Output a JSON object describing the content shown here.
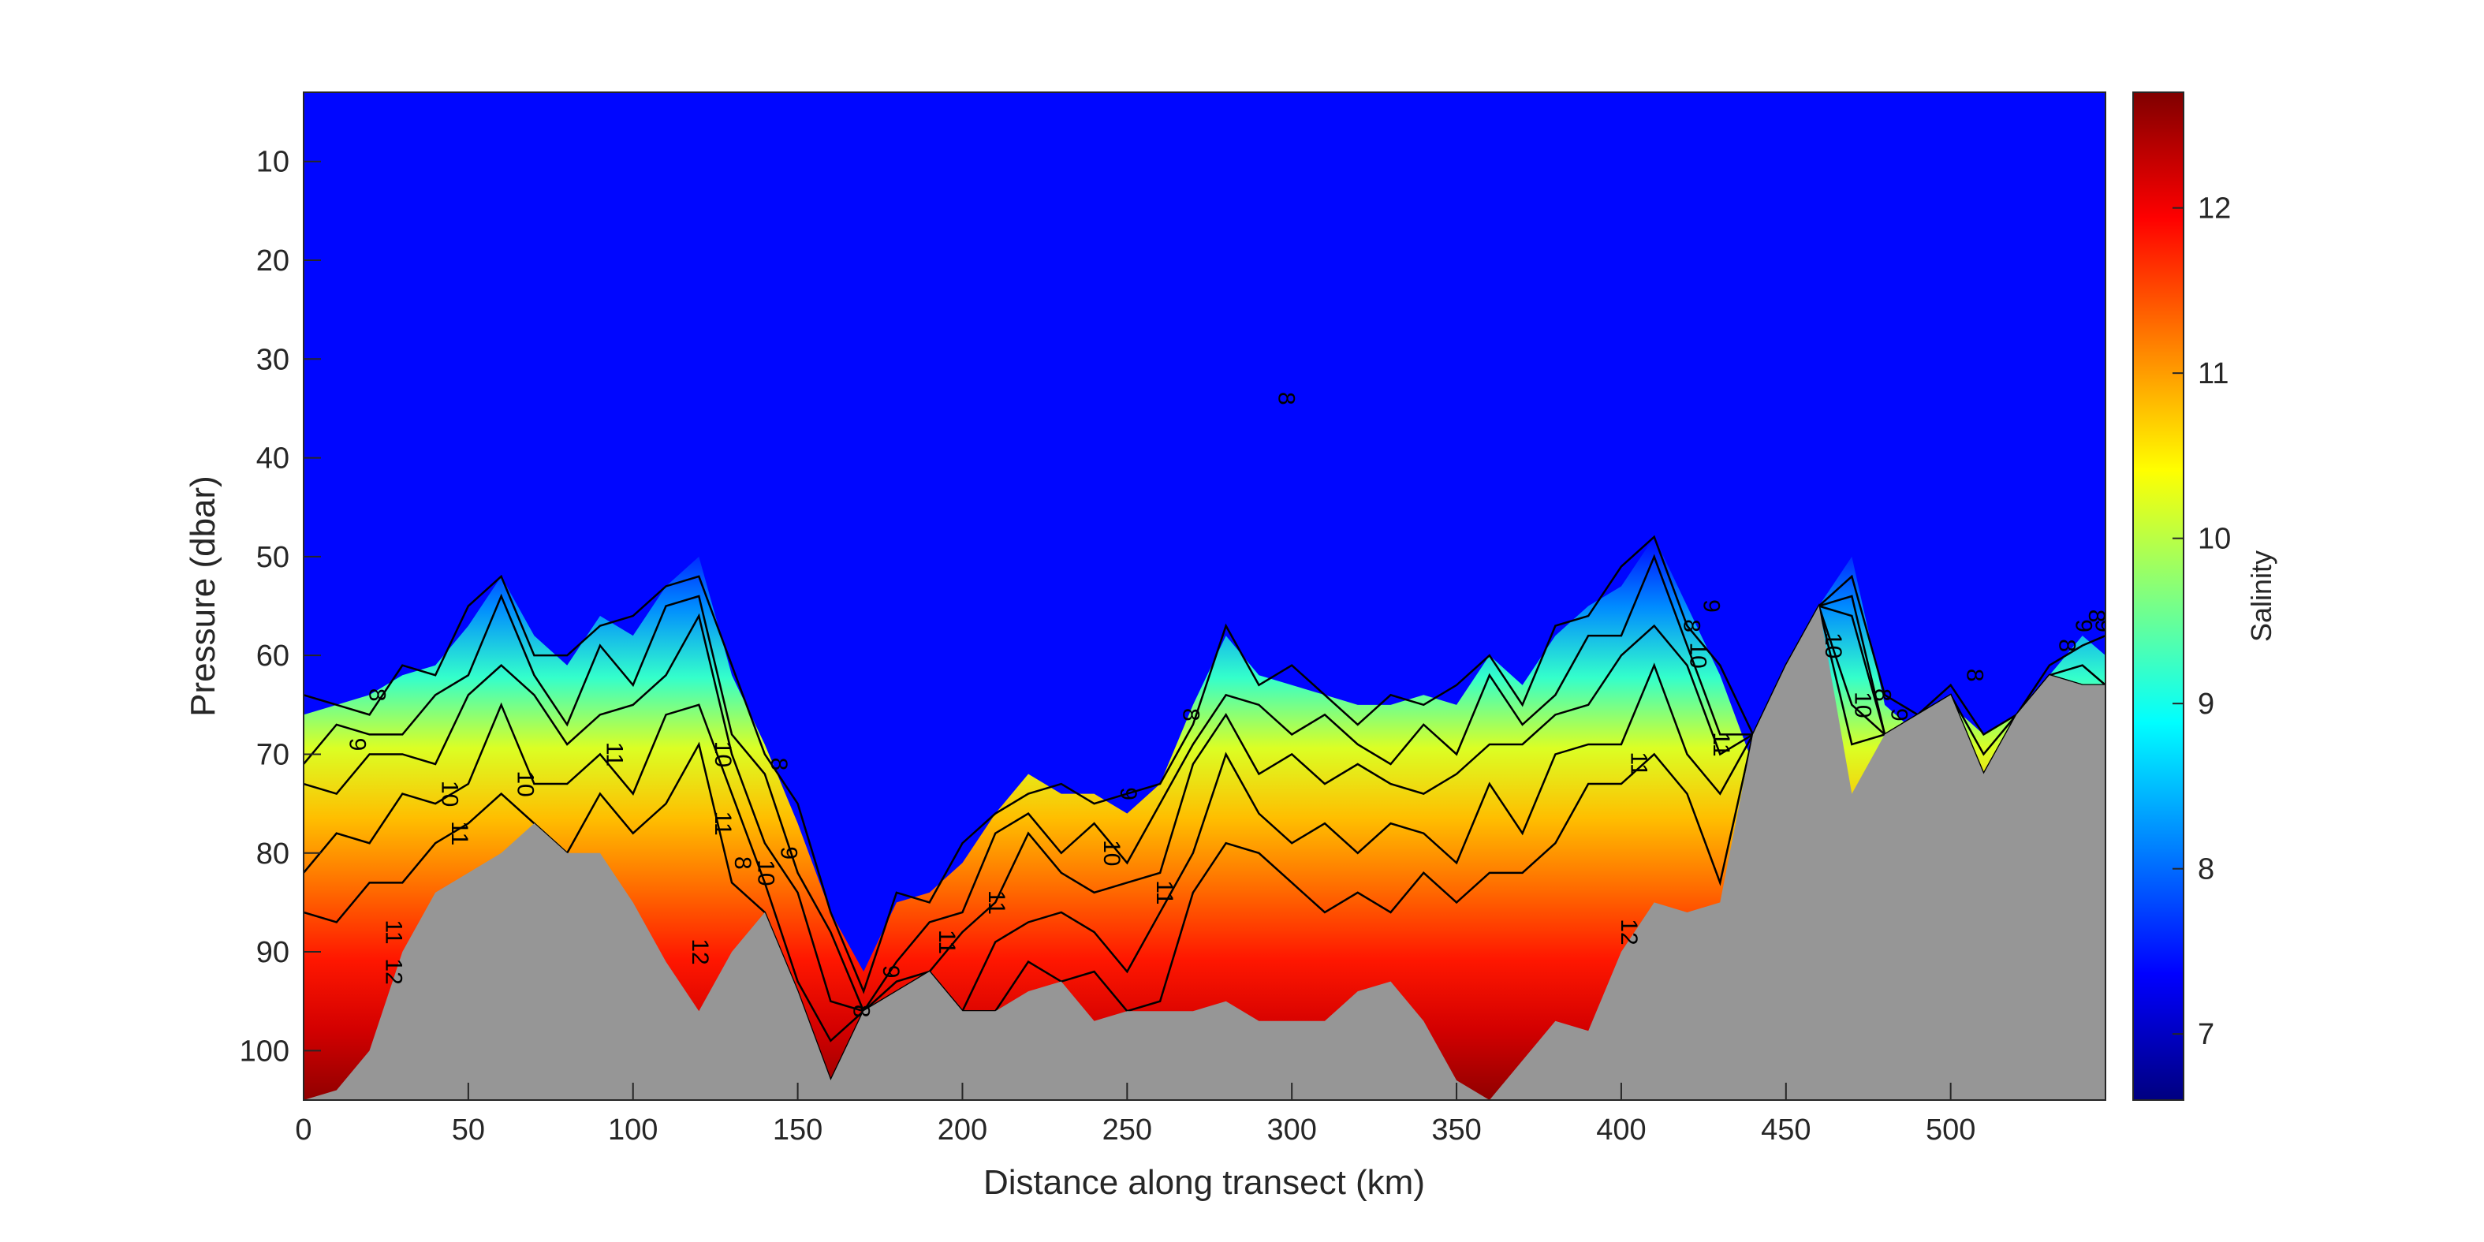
{
  "chart_data": {
    "type": "heatmap",
    "xlabel": "Distance along transect (km)",
    "ylabel": "Pressure (dbar)",
    "colorbar_label": "Salinity",
    "xlim": [
      0,
      547
    ],
    "ylim": [
      105,
      3
    ],
    "y_reversed": true,
    "clim": [
      6.6,
      12.7
    ],
    "colormap": "jet",
    "x_ticks": [
      0,
      50,
      100,
      150,
      200,
      250,
      300,
      350,
      400,
      450,
      500
    ],
    "y_ticks": [
      10,
      20,
      30,
      40,
      50,
      60,
      70,
      80,
      90,
      100
    ],
    "colorbar_ticks": [
      7,
      8,
      9,
      10,
      11,
      12
    ],
    "surface_salinity": 7.4,
    "halocline_top_pressure": {
      "x": [
        0,
        10,
        20,
        30,
        40,
        50,
        60,
        70,
        80,
        90,
        100,
        110,
        120,
        130,
        140,
        150,
        160,
        170,
        180,
        190,
        200,
        210,
        220,
        230,
        240,
        250,
        260,
        270,
        280,
        290,
        300,
        310,
        320,
        330,
        340,
        350,
        360,
        370,
        380,
        390,
        400,
        410,
        420,
        430,
        440,
        450,
        460,
        470,
        480,
        490,
        500,
        510,
        520,
        530,
        540,
        547
      ],
      "y": [
        66,
        65,
        64,
        62,
        61,
        57,
        52,
        58,
        61,
        56,
        58,
        53,
        50,
        62,
        69,
        77,
        86,
        92,
        85,
        84,
        81,
        76,
        72,
        74,
        74,
        76,
        73,
        65,
        58,
        62,
        63,
        64,
        65,
        65,
        64,
        65,
        60,
        63,
        58,
        55,
        53,
        48,
        55,
        62,
        71,
        64,
        55,
        50,
        65,
        68,
        65,
        68,
        66,
        62,
        58,
        60
      ]
    },
    "seabed_pressure": {
      "x": [
        0,
        10,
        20,
        30,
        40,
        50,
        60,
        70,
        80,
        90,
        100,
        110,
        120,
        130,
        140,
        150,
        160,
        170,
        180,
        190,
        200,
        210,
        220,
        230,
        240,
        250,
        260,
        270,
        280,
        290,
        300,
        310,
        320,
        330,
        340,
        350,
        360,
        370,
        380,
        390,
        400,
        410,
        420,
        430,
        440,
        450,
        460,
        470,
        480,
        490,
        500,
        510,
        520,
        530,
        540,
        547
      ],
      "y": [
        105,
        104,
        100,
        90,
        84,
        82,
        80,
        77,
        80,
        80,
        85,
        91,
        96,
        90,
        86,
        94,
        103,
        96,
        94,
        92,
        96,
        96,
        94,
        93,
        97,
        96,
        96,
        96,
        95,
        97,
        97,
        97,
        94,
        93,
        97,
        103,
        105,
        101,
        97,
        98,
        90,
        85,
        86,
        85,
        68,
        61,
        55,
        74,
        68,
        66,
        64,
        72,
        66,
        62,
        63,
        63
      ]
    },
    "contour_levels": [
      8,
      9,
      10,
      11,
      12
    ],
    "contour_labels": [
      {
        "x": 14,
        "y": 69,
        "text": "9"
      },
      {
        "x": 20,
        "y": 64,
        "text": "8"
      },
      {
        "x": 42,
        "y": 74,
        "text": "10"
      },
      {
        "x": 45,
        "y": 78,
        "text": "11"
      },
      {
        "x": 65,
        "y": 73,
        "text": "10"
      },
      {
        "x": 25,
        "y": 88,
        "text": "11"
      },
      {
        "x": 25,
        "y": 92,
        "text": "12"
      },
      {
        "x": 92,
        "y": 70,
        "text": "11"
      },
      {
        "x": 125,
        "y": 70,
        "text": "10"
      },
      {
        "x": 125,
        "y": 77,
        "text": "11"
      },
      {
        "x": 118,
        "y": 90,
        "text": "12"
      },
      {
        "x": 142,
        "y": 71,
        "text": "8"
      },
      {
        "x": 145,
        "y": 80,
        "text": "9"
      },
      {
        "x": 131,
        "y": 81,
        "text": "8"
      },
      {
        "x": 138,
        "y": 82,
        "text": "10"
      },
      {
        "x": 167,
        "y": 96,
        "text": "8"
      },
      {
        "x": 176,
        "y": 92,
        "text": "9"
      },
      {
        "x": 193,
        "y": 89,
        "text": "11"
      },
      {
        "x": 208,
        "y": 85,
        "text": "11"
      },
      {
        "x": 243,
        "y": 80,
        "text": "10"
      },
      {
        "x": 248,
        "y": 74,
        "text": "9"
      },
      {
        "x": 259,
        "y": 84,
        "text": "11"
      },
      {
        "x": 267,
        "y": 66,
        "text": "8"
      },
      {
        "x": 296,
        "y": 34,
        "text": "8"
      },
      {
        "x": 403,
        "y": 71,
        "text": "11"
      },
      {
        "x": 400,
        "y": 88,
        "text": "12"
      },
      {
        "x": 419,
        "y": 57,
        "text": "8"
      },
      {
        "x": 421,
        "y": 60,
        "text": "10"
      },
      {
        "x": 425,
        "y": 55,
        "text": "9"
      },
      {
        "x": 428,
        "y": 69,
        "text": "11"
      },
      {
        "x": 462,
        "y": 59,
        "text": "10"
      },
      {
        "x": 471,
        "y": 65,
        "text": "10"
      },
      {
        "x": 477,
        "y": 64,
        "text": "8"
      },
      {
        "x": 482,
        "y": 66,
        "text": "9"
      },
      {
        "x": 505,
        "y": 62,
        "text": "8"
      },
      {
        "x": 533,
        "y": 59,
        "text": "8"
      },
      {
        "x": 538,
        "y": 57,
        "text": "9"
      },
      {
        "x": 542,
        "y": 56,
        "text": "8"
      },
      {
        "x": 544,
        "y": 57,
        "text": "9"
      }
    ]
  }
}
